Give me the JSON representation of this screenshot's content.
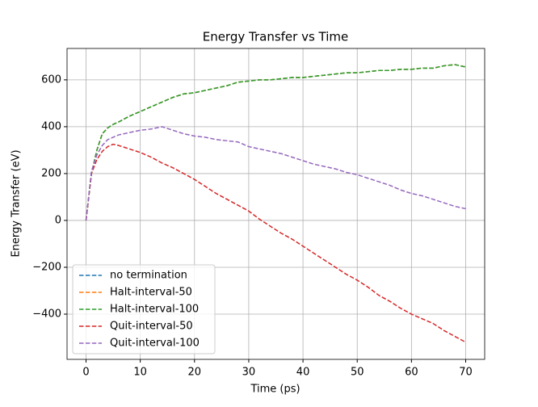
{
  "chart_data": {
    "type": "line",
    "title": "Energy Transfer vs Time",
    "xlabel": "Time (ps)",
    "ylabel": "Energy Transfer (eV)",
    "x": [
      0,
      1,
      2,
      3,
      4,
      5,
      6,
      8,
      10,
      12,
      14,
      16,
      18,
      20,
      22,
      24,
      26,
      28,
      30,
      32,
      34,
      36,
      38,
      40,
      42,
      44,
      46,
      48,
      50,
      52,
      54,
      56,
      58,
      60,
      62,
      64,
      66,
      68,
      70
    ],
    "series": [
      {
        "name": "no termination",
        "color": "#1f77b4",
        "values": [
          0,
          200,
          300,
          370,
          395,
          410,
          420,
          445,
          465,
          485,
          505,
          525,
          540,
          545,
          555,
          565,
          575,
          590,
          595,
          600,
          600,
          605,
          610,
          610,
          615,
          620,
          625,
          630,
          630,
          635,
          640,
          640,
          645,
          645,
          650,
          650,
          660,
          665,
          655
        ]
      },
      {
        "name": "Halt-interval-50",
        "color": "#ff7f0e",
        "values": [
          0,
          200,
          300,
          370,
          395,
          410,
          420,
          445,
          465,
          485,
          505,
          525,
          540,
          545,
          555,
          565,
          575,
          590,
          595,
          600,
          600,
          605,
          610,
          610,
          615,
          620,
          625,
          630,
          630,
          635,
          640,
          640,
          645,
          645,
          650,
          650,
          660,
          665,
          655
        ]
      },
      {
        "name": "Halt-interval-100",
        "color": "#2ca02c",
        "values": [
          0,
          200,
          300,
          370,
          395,
          410,
          420,
          445,
          465,
          485,
          505,
          525,
          540,
          545,
          555,
          565,
          575,
          590,
          595,
          600,
          600,
          605,
          610,
          610,
          615,
          620,
          625,
          630,
          630,
          635,
          640,
          640,
          645,
          645,
          650,
          650,
          660,
          665,
          655
        ]
      },
      {
        "name": "Quit-interval-50",
        "color": "#d62728",
        "values": [
          0,
          200,
          260,
          295,
          315,
          325,
          320,
          305,
          290,
          270,
          245,
          225,
          200,
          175,
          145,
          115,
          90,
          65,
          40,
          5,
          -25,
          -55,
          -80,
          -110,
          -140,
          -170,
          -200,
          -230,
          -255,
          -285,
          -320,
          -345,
          -375,
          -400,
          -420,
          -440,
          -470,
          -495,
          -520
        ]
      },
      {
        "name": "Quit-interval-100",
        "color": "#9467bd",
        "values": [
          0,
          210,
          280,
          320,
          345,
          355,
          365,
          375,
          385,
          390,
          400,
          385,
          370,
          360,
          355,
          345,
          340,
          335,
          315,
          305,
          295,
          285,
          270,
          255,
          240,
          230,
          220,
          205,
          195,
          180,
          165,
          150,
          130,
          115,
          105,
          90,
          75,
          60,
          50
        ]
      }
    ],
    "xlim": [
      -3.5,
      73.5
    ],
    "xticks": [
      0,
      10,
      20,
      30,
      40,
      50,
      60,
      70
    ],
    "ylim": [
      -593,
      734
    ],
    "yticks": [
      {
        "value": -400,
        "label": "−400"
      },
      {
        "value": -200,
        "label": "−200"
      },
      0,
      200,
      400,
      600
    ],
    "grid": true,
    "legend": "lower left",
    "dashed": true
  }
}
